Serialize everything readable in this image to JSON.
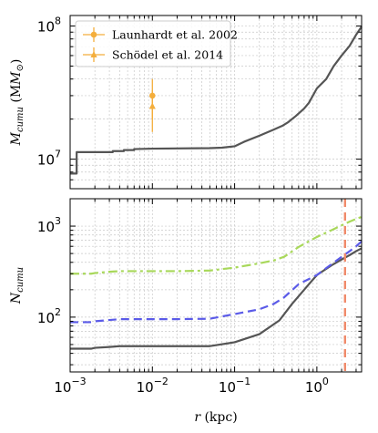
{
  "chart_data": [
    {
      "type": "line",
      "panel": "top",
      "ylabel": "M_cumu (M_⊙)",
      "ylabel_main": "M",
      "ylabel_sub": "cumu",
      "ylabel_unit_left": " (M",
      "ylabel_unit_sub": "⊙",
      "ylabel_unit_right": ")",
      "xscale": "log",
      "yscale": "log",
      "xlim": [
        0.001,
        3.5
      ],
      "ylim": [
        6000000,
        120000000
      ],
      "grid": true,
      "legend_location": "upper-left",
      "ytick_labels": [
        {
          "value": 10000000,
          "base": "10",
          "exp": "7"
        },
        {
          "value": 100000000,
          "base": "10",
          "exp": "8"
        }
      ],
      "series": [
        {
          "color": "#555555",
          "style": "solid",
          "x": [
            0.001,
            0.0012,
            0.0012,
            0.0033,
            0.0033,
            0.0045,
            0.0045,
            0.006,
            0.006,
            0.01,
            0.05,
            0.07,
            0.1,
            0.13,
            0.2,
            0.3,
            0.38,
            0.45,
            0.55,
            0.7,
            0.8,
            1.0,
            1.3,
            1.6,
            2.0,
            2.5,
            3.0,
            3.5
          ],
          "y": [
            7800000,
            7800000,
            11300000,
            11300000,
            11500000,
            11500000,
            11700000,
            11700000,
            11900000,
            12000000,
            12100000,
            12200000,
            12500000,
            13500000,
            15000000,
            16700000,
            17800000,
            19000000,
            21000000,
            24000000,
            26500000,
            34000000,
            40000000,
            50000000,
            60000000,
            71000000,
            86000000,
            99000000
          ]
        }
      ],
      "points": [
        {
          "name": "Launhardt et al. 2002",
          "color": "#f4ae3c",
          "marker": "circle",
          "x": 0.01,
          "y": 30000000,
          "yerr_low": 20000000,
          "yerr_high": 40000000
        },
        {
          "name": "Schödel et al. 2014",
          "color": "#f4ae3c",
          "marker": "triangle",
          "x": 0.01,
          "y": 25000000,
          "yerr_low": 16000000,
          "yerr_high": 33000000
        }
      ]
    },
    {
      "type": "line",
      "panel": "bottom",
      "xlabel": "r (kpc)",
      "xlabel_main": "r",
      "xlabel_unit": " (kpc)",
      "ylabel": "N_cumu",
      "ylabel_main": "N",
      "ylabel_sub": "cumu",
      "xscale": "log",
      "yscale": "log",
      "xlim": [
        0.001,
        3.5
      ],
      "ylim": [
        25,
        2000
      ],
      "grid": true,
      "xtick_labels": [
        {
          "value": 0.001,
          "base": "10",
          "exp": "−3"
        },
        {
          "value": 0.01,
          "base": "10",
          "exp": "−2"
        },
        {
          "value": 0.1,
          "base": "10",
          "exp": "−1"
        },
        {
          "value": 1,
          "base": "10",
          "exp": "0"
        }
      ],
      "ytick_labels": [
        {
          "value": 100,
          "base": "10",
          "exp": "2"
        },
        {
          "value": 1000,
          "base": "10",
          "exp": "3"
        }
      ],
      "vline": {
        "x": 2.2,
        "color": "#f08a6a",
        "style": "dashed"
      },
      "series": [
        {
          "color": "#555555",
          "style": "solid",
          "x": [
            0.001,
            0.0018,
            0.002,
            0.003,
            0.004,
            0.006,
            0.01,
            0.02,
            0.05,
            0.1,
            0.2,
            0.35,
            0.5,
            0.8,
            1.0,
            1.5,
            2.0,
            2.5,
            3.0,
            3.5
          ],
          "y": [
            45,
            45,
            46,
            47,
            48,
            48,
            48,
            48,
            48,
            53,
            65,
            92,
            140,
            230,
            290,
            370,
            430,
            480,
            530,
            570
          ]
        },
        {
          "color": "#5b5be8",
          "style": "dashed",
          "x": [
            0.001,
            0.0018,
            0.002,
            0.003,
            0.004,
            0.006,
            0.01,
            0.02,
            0.05,
            0.1,
            0.2,
            0.3,
            0.4,
            0.6,
            1.0,
            1.5,
            2.0,
            2.5,
            3.0,
            3.5
          ],
          "y": [
            88,
            88,
            90,
            93,
            95,
            95,
            95,
            95,
            96,
            108,
            122,
            140,
            165,
            230,
            290,
            380,
            460,
            530,
            600,
            680
          ]
        },
        {
          "color": "#a8d85a",
          "style": "dashdot",
          "x": [
            0.001,
            0.0018,
            0.002,
            0.003,
            0.004,
            0.006,
            0.01,
            0.02,
            0.05,
            0.1,
            0.2,
            0.3,
            0.4,
            0.6,
            1.0,
            1.5,
            2.0,
            2.5,
            3.0,
            3.5
          ],
          "y": [
            300,
            300,
            305,
            315,
            320,
            320,
            320,
            320,
            325,
            350,
            390,
            420,
            460,
            590,
            760,
            900,
            1020,
            1120,
            1200,
            1260
          ]
        }
      ]
    }
  ]
}
